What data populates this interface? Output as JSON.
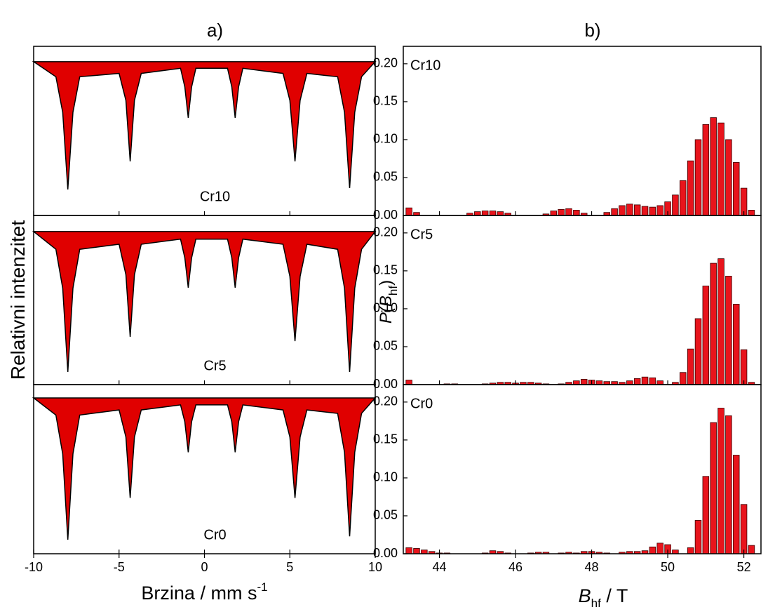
{
  "chart_data": [
    {
      "type": "line",
      "title": "a)",
      "xlabel": {
        "text": "Brzina / mm s",
        "sup": "-1"
      },
      "ylabel": {
        "text": "Relativni intenzitet"
      },
      "xlim": [
        -10,
        10
      ],
      "xticks": [
        -10,
        -5,
        0,
        5,
        10
      ],
      "ylim": [
        0,
        1
      ],
      "x": [
        -10,
        -8.7,
        -8.3,
        -8.0,
        -7.7,
        -7.3,
        -5.0,
        -4.6,
        -4.35,
        -4.1,
        -3.7,
        -1.4,
        -1.15,
        -0.95,
        -0.75,
        -0.5,
        1.35,
        1.6,
        1.8,
        2.0,
        2.25,
        4.6,
        5.0,
        5.3,
        5.6,
        6.0,
        7.8,
        8.2,
        8.5,
        8.8,
        9.2,
        10
      ],
      "series": [
        {
          "name": "Cr10",
          "color": "#e00000",
          "values": [
            0.909,
            0.82,
            0.61,
            0.154,
            0.61,
            0.82,
            0.84,
            0.68,
            0.32,
            0.68,
            0.84,
            0.87,
            0.76,
            0.577,
            0.76,
            0.87,
            0.87,
            0.76,
            0.577,
            0.76,
            0.87,
            0.84,
            0.68,
            0.32,
            0.68,
            0.84,
            0.82,
            0.61,
            0.162,
            0.61,
            0.82,
            0.909
          ]
        },
        {
          "name": "Cr5",
          "color": "#e00000",
          "values": [
            0.905,
            0.8,
            0.57,
            0.075,
            0.57,
            0.8,
            0.83,
            0.65,
            0.282,
            0.65,
            0.83,
            0.86,
            0.75,
            0.573,
            0.75,
            0.86,
            0.86,
            0.75,
            0.573,
            0.75,
            0.86,
            0.83,
            0.64,
            0.257,
            0.64,
            0.83,
            0.8,
            0.57,
            0.075,
            0.57,
            0.8,
            0.905
          ]
        },
        {
          "name": "Cr0",
          "color": "#e00000",
          "values": [
            0.921,
            0.82,
            0.59,
            0.083,
            0.59,
            0.82,
            0.85,
            0.69,
            0.33,
            0.69,
            0.85,
            0.88,
            0.78,
            0.6,
            0.78,
            0.88,
            0.88,
            0.78,
            0.6,
            0.78,
            0.88,
            0.85,
            0.69,
            0.33,
            0.69,
            0.85,
            0.83,
            0.6,
            0.103,
            0.6,
            0.83,
            0.921
          ]
        }
      ]
    },
    {
      "type": "bar",
      "title": "b)",
      "xlabel": {
        "text": "B",
        "sub": "hf",
        "rest": " / T"
      },
      "ylabel": {
        "text": "P(B",
        "sub": "hf",
        "rest": ")"
      },
      "xlim": [
        43.05,
        52.45
      ],
      "xticks": [
        44,
        46,
        48,
        50,
        52
      ],
      "ylim": [
        0,
        0.223
      ],
      "yticks": [
        {
          "value": 0,
          "label": "0.00"
        },
        0.05,
        {
          "value": 0.1,
          "label": "0.10"
        },
        0.15,
        {
          "value": 0.2,
          "label": "0.20"
        }
      ],
      "x": [
        43.2,
        43.4,
        43.6,
        43.8,
        44.0,
        44.2,
        44.4,
        44.6,
        44.8,
        45.0,
        45.2,
        45.4,
        45.6,
        45.8,
        46.0,
        46.2,
        46.4,
        46.6,
        46.8,
        47.0,
        47.2,
        47.4,
        47.6,
        47.8,
        48.0,
        48.2,
        48.4,
        48.6,
        48.8,
        49.0,
        49.2,
        49.4,
        49.6,
        49.8,
        50.0,
        50.2,
        50.4,
        50.6,
        50.8,
        51.0,
        51.2,
        51.4,
        51.6,
        51.8,
        52.0,
        52.2
      ],
      "series": [
        {
          "name": "Cr10",
          "color": "#e8141c",
          "values": [
            0.01,
            0.004,
            0,
            0,
            0,
            0,
            0,
            0,
            0.003,
            0.005,
            0.006,
            0.006,
            0.005,
            0.003,
            0,
            0,
            0,
            0,
            0.002,
            0.006,
            0.008,
            0.009,
            0.007,
            0.003,
            0,
            0,
            0.004,
            0.009,
            0.013,
            0.015,
            0.014,
            0.012,
            0.011,
            0.013,
            0.018,
            0.027,
            0.046,
            0.072,
            0.1,
            0.12,
            0.129,
            0.122,
            0.1,
            0.07,
            0.036,
            0.007
          ]
        },
        {
          "name": "Cr5",
          "color": "#e8141c",
          "values": [
            0.006,
            0,
            0,
            0,
            0,
            0.001,
            0.001,
            0,
            0,
            0,
            0.001,
            0.002,
            0.003,
            0.003,
            0.002,
            0.003,
            0.003,
            0.002,
            0.001,
            0,
            0.001,
            0.003,
            0.005,
            0.007,
            0.006,
            0.005,
            0.004,
            0.004,
            0.003,
            0.005,
            0.008,
            0.01,
            0.009,
            0.005,
            0,
            0.003,
            0.016,
            0.047,
            0.087,
            0.13,
            0.16,
            0.166,
            0.143,
            0.106,
            0.046,
            0.003
          ]
        },
        {
          "name": "Cr0",
          "color": "#e8141c",
          "values": [
            0.008,
            0.007,
            0.005,
            0.003,
            0.001,
            0.001,
            0,
            0,
            0,
            0,
            0.001,
            0.004,
            0.003,
            0.001,
            0,
            0,
            0.001,
            0.002,
            0.002,
            0,
            0.001,
            0.002,
            0.001,
            0.003,
            0.003,
            0.002,
            0.001,
            0,
            0.002,
            0.003,
            0.003,
            0.004,
            0.009,
            0.014,
            0.012,
            0.005,
            0,
            0.008,
            0.044,
            0.102,
            0.173,
            0.192,
            0.182,
            0.13,
            0.065,
            0.011
          ]
        }
      ]
    }
  ]
}
